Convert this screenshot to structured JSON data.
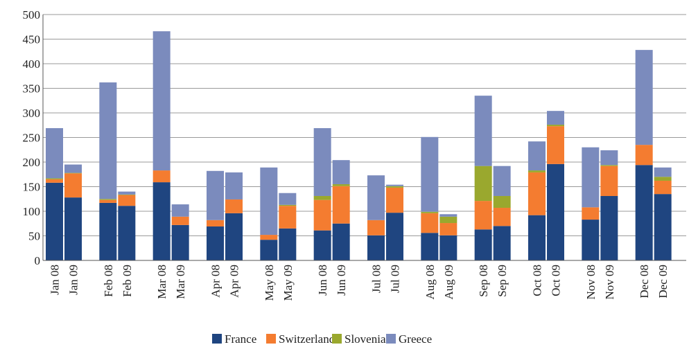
{
  "chart_data": {
    "type": "stacked_bar",
    "categories": [
      "Jan 08",
      "Jan 09",
      "Feb 08",
      "Feb 09",
      "Mar 08",
      "Mar 09",
      "Apr 08",
      "Apr 09",
      "May 08",
      "May 09",
      "Jun 08",
      "Jun 09",
      "Jul 08",
      "Jul 09",
      "Aug 08",
      "Aug 09",
      "Sep 08",
      "Sep 09",
      "Oct 08",
      "Oct 09",
      "Nov 08",
      "Nov 09",
      "Dec 08",
      "Dec 09"
    ],
    "series": [
      {
        "name": "France",
        "color": "#1f4580",
        "values": [
          158,
          128,
          117,
          111,
          159,
          72,
          69,
          96,
          42,
          65,
          61,
          75,
          51,
          97,
          56,
          51,
          63,
          70,
          92,
          196,
          83,
          131,
          194,
          135
        ]
      },
      {
        "name": "Switzerland",
        "color": "#f47c30",
        "values": [
          7,
          49,
          6,
          22,
          24,
          17,
          13,
          28,
          10,
          46,
          62,
          76,
          31,
          51,
          40,
          25,
          58,
          37,
          87,
          77,
          25,
          61,
          41,
          27
        ]
      },
      {
        "name": "Slovenia",
        "color": "#9aa82e",
        "values": [
          2,
          1,
          2,
          1,
          0,
          0,
          0,
          0,
          0,
          2,
          8,
          4,
          0,
          3,
          3,
          13,
          71,
          24,
          4,
          3,
          0,
          2,
          0,
          8
        ]
      },
      {
        "name": "Greece",
        "color": "#7b8bbd",
        "values": [
          102,
          17,
          237,
          6,
          283,
          25,
          100,
          55,
          137,
          24,
          138,
          49,
          91,
          3,
          152,
          5,
          143,
          61,
          59,
          28,
          122,
          30,
          193,
          19
        ]
      }
    ],
    "ylim": [
      0,
      500
    ],
    "yticks": [
      0,
      50,
      100,
      150,
      200,
      250,
      300,
      350,
      400,
      450,
      500
    ],
    "grid": true
  }
}
